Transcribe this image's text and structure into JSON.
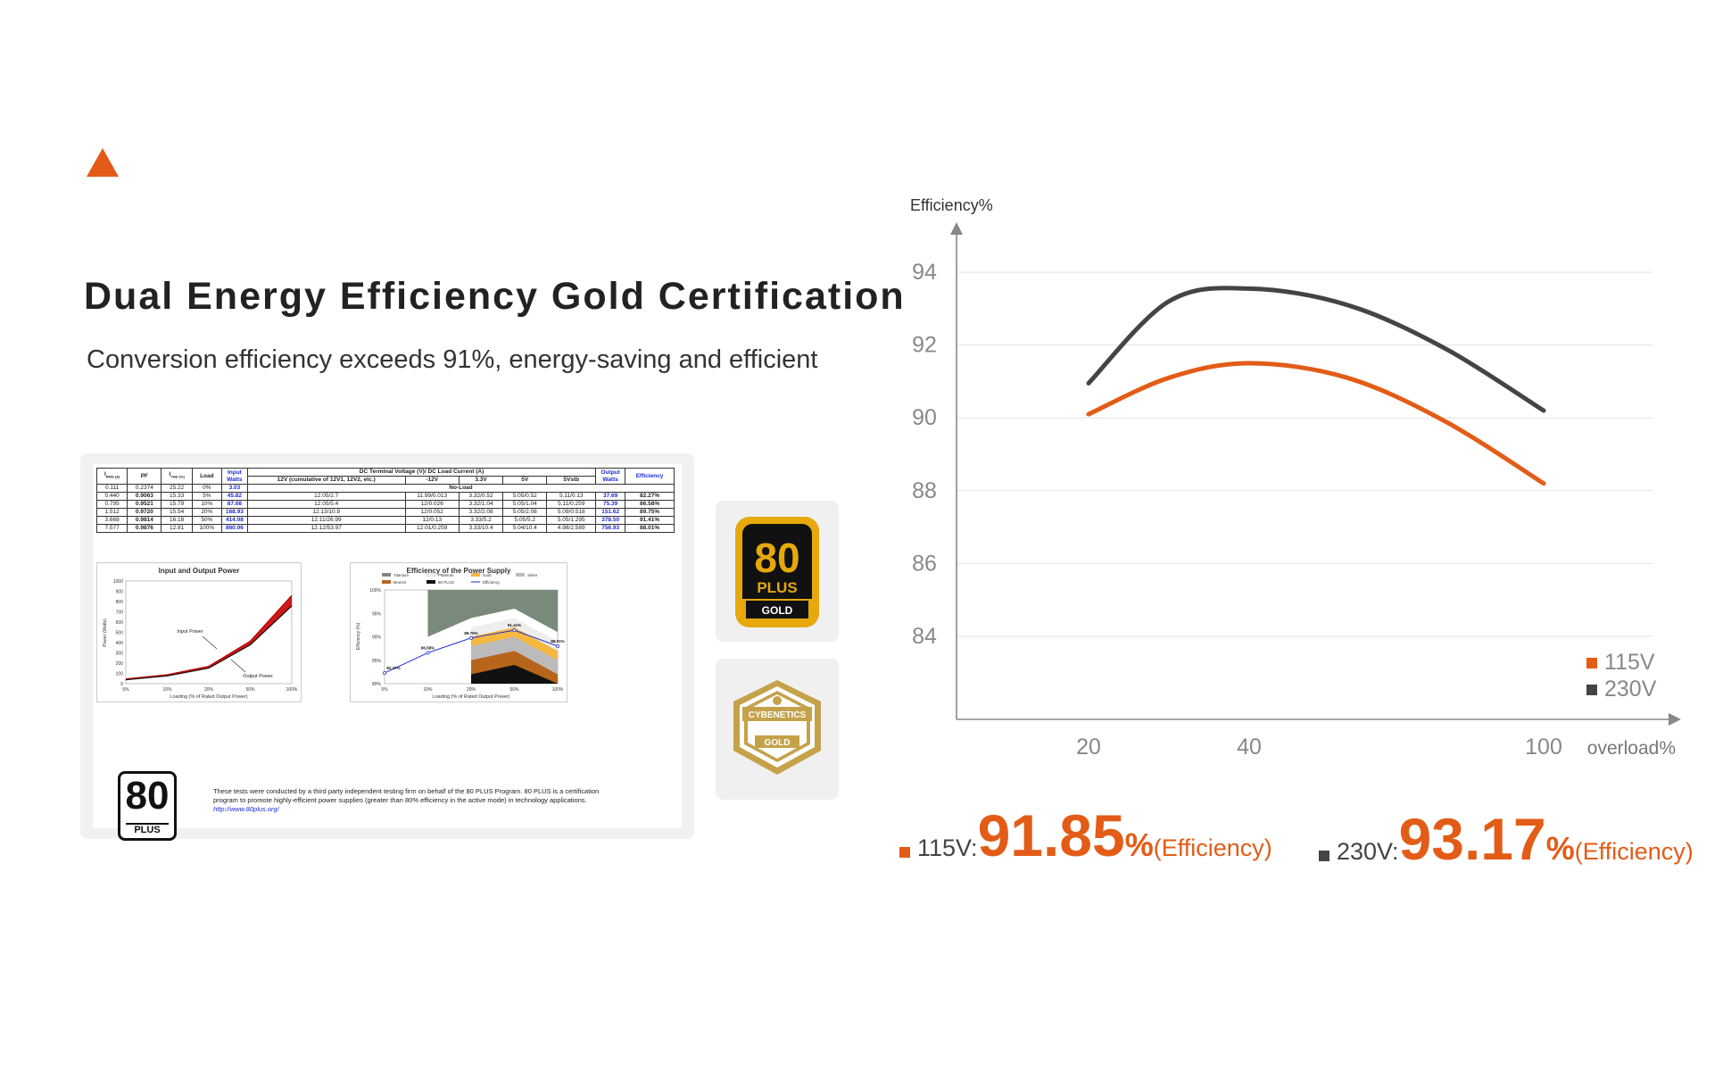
{
  "heading": {
    "title": "Dual Energy Efficiency Gold Certification",
    "subtitle": "Conversion efficiency exceeds 91%, energy-saving and efficient"
  },
  "report": {
    "headers": {
      "irms": "I",
      "irms_sub": "RMS (A)",
      "pf": "PF",
      "ithd": "I",
      "ithd_sub": "THD (%)",
      "load": "Load",
      "input_watts": "Input Watts",
      "dc_group": "DC Terminal Voltage (V)/ DC Load Current (A)",
      "v12": "12V (cumulative of 12V1, 12V2, etc.)",
      "vm12": "-12V",
      "v33": "3.3V",
      "v5": "5V",
      "v5sb": "5Vstb",
      "output_watts": "Output Watts",
      "efficiency": "Efficiency"
    },
    "noload_row": {
      "irms": "0.111",
      "pf": "0.2374",
      "ithd": "25.22",
      "load": "0%",
      "input": "3.03",
      "label": "No-Load"
    },
    "rows": [
      {
        "irms": "0.440",
        "pf": "0.9063",
        "ithd": "15.33",
        "load": "5%",
        "input": "45.82",
        "v12": "12.05/2.7",
        "vm12": "11.99/0.013",
        "v33": "3.32/0.52",
        "v5": "5.05/0.52",
        "v5sb": "5.11/0.13",
        "output": "37.69",
        "eff": "82.27%"
      },
      {
        "irms": "0.795",
        "pf": "0.9521",
        "ithd": "15.79",
        "load": "10%",
        "input": "87.08",
        "v12": "12.05/5.4",
        "vm12": "12/0.026",
        "v33": "3.32/1.04",
        "v5": "5.05/1.04",
        "v5sb": "5.11/0.259",
        "output": "75.39",
        "eff": "86.58%"
      },
      {
        "irms": "1.512",
        "pf": "0.9720",
        "ithd": "15.54",
        "load": "20%",
        "input": "168.93",
        "v12": "12.13/10.8",
        "vm12": "12/0.052",
        "v33": "3.32/2.08",
        "v5": "5.05/2.08",
        "v5sb": "5.09/0.518",
        "output": "151.62",
        "eff": "89.75%"
      },
      {
        "irms": "3.668",
        "pf": "0.9814",
        "ithd": "16.18",
        "load": "50%",
        "input": "414.08",
        "v12": "12.11/26.99",
        "vm12": "12/0.13",
        "v33": "3.33/5.2",
        "v5": "5.05/5.2",
        "v5sb": "5.05/1.295",
        "output": "378.50",
        "eff": "91.41%"
      },
      {
        "irms": "7.577",
        "pf": "0.9876",
        "ithd": "12.81",
        "load": "100%",
        "input": "860.06",
        "v12": "12.12/53.97",
        "vm12": "12.01/0.259",
        "v33": "3.33/10.4",
        "v5": "5.04/10.4",
        "v5sb": "4.98/2.589",
        "output": "756.93",
        "eff": "88.01%"
      }
    ],
    "power_chart": {
      "title": "Input and Output Power",
      "ylabel": "Power (Watts)",
      "xlabel": "Loading (% of Rated Output Power)",
      "yticks": [
        "1000",
        "900",
        "800",
        "700",
        "600",
        "500",
        "400",
        "300",
        "200",
        "100",
        "0"
      ],
      "xticks": [
        "5%",
        "10%",
        "20%",
        "50%",
        "100%"
      ],
      "input_label": "Input Power",
      "output_label": "Output Power"
    },
    "eff_chart": {
      "title": "Efficiency of the Power Supply",
      "legend": [
        "Titanium",
        "Platinum",
        "Gold",
        "Silver",
        "Bronze",
        "80 PLUS",
        "Efficiency"
      ],
      "ylabel": "Efficiency (%)",
      "xlabel": "Loading (% of Rated Output Power)",
      "yticks": [
        "100%",
        "95%",
        "90%",
        "85%",
        "80%"
      ],
      "xticks": [
        "5%",
        "10%",
        "20%",
        "50%",
        "100%"
      ],
      "point_labels": [
        "82.27%",
        "86.58%",
        "89.75%",
        "91.41%",
        "88.01%"
      ]
    },
    "logo": {
      "top": "80",
      "bottom": "PLUS"
    },
    "note": "These tests were conducted by a third party independent testing firm on behalf of the 80 PLUS Program. 80 PLUS is a certification program to promote highly-efficient power supplies (greater than 80% efficiency in the active mode) in technology applications.",
    "note_link": "http://www.80plus.org/"
  },
  "badges": {
    "plus80": {
      "top": "80",
      "plus": "PLUS",
      "grade": "GOLD"
    },
    "cybenetics": {
      "name": "CYBENETICS",
      "grade": "GOLD"
    }
  },
  "chart_data": {
    "type": "line",
    "ylabel": "Efficiency%",
    "xlabel": "overload%",
    "x": [
      20,
      40,
      100
    ],
    "ylim": [
      82,
      95
    ],
    "yticks": [
      94,
      92,
      90,
      88,
      86,
      84
    ],
    "grid": true,
    "legend_position": "bottom-right",
    "series": [
      {
        "name": "115V",
        "color": "#e35c17",
        "x": [
          20,
          30,
          40,
          60,
          80,
          100
        ],
        "values": [
          90.1,
          91.1,
          91.5,
          91.1,
          89.9,
          88.2
        ]
      },
      {
        "name": "230V",
        "color": "#444444",
        "x": [
          20,
          30,
          40,
          60,
          80,
          100
        ],
        "values": [
          90.95,
          93.2,
          93.55,
          93.1,
          91.9,
          90.2
        ]
      }
    ]
  },
  "stats": [
    {
      "label": "115V:",
      "value": "91.85",
      "pct": "%",
      "suffix": "(Efficiency)",
      "color": "#e35c17"
    },
    {
      "label": "230V:",
      "value": "93.17",
      "pct": "%",
      "suffix": "(Efficiency)",
      "color": "#444444"
    }
  ]
}
